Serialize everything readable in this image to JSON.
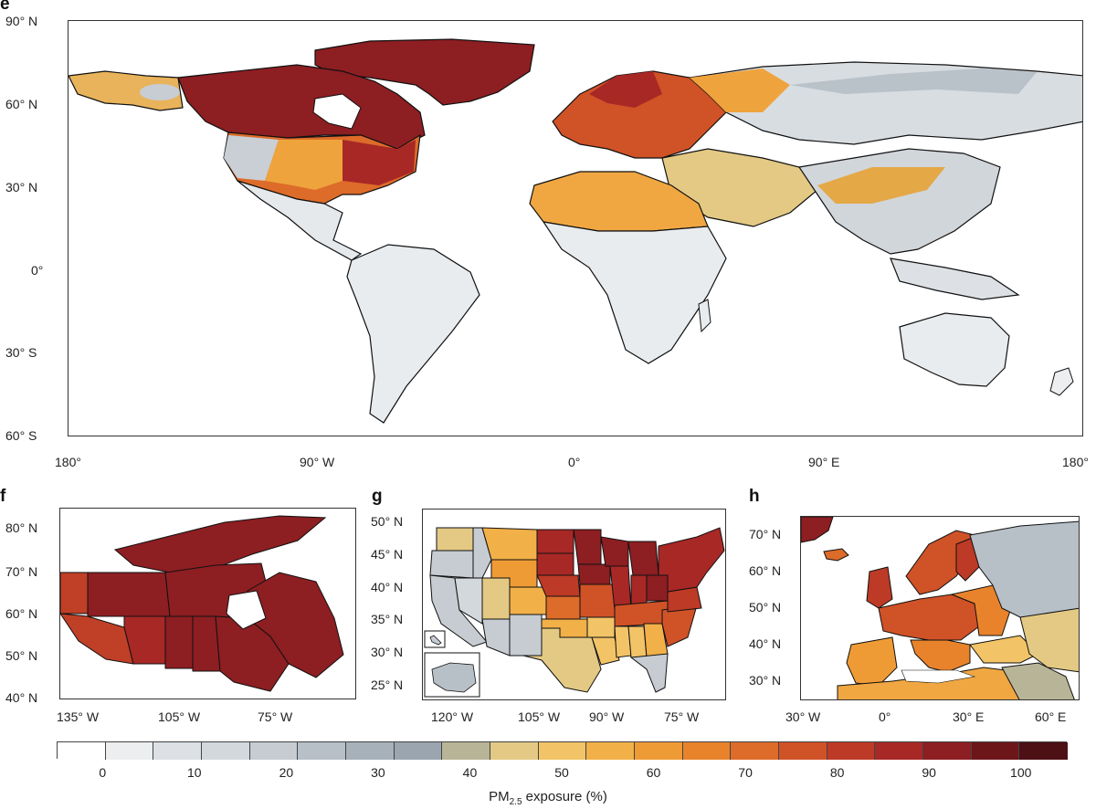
{
  "panels": {
    "e": {
      "letter": "e",
      "lat_labels": [
        "90° N",
        "60° N",
        "30° N",
        "0°",
        "30° S",
        "60° S"
      ],
      "lon_labels": [
        "180°",
        "90° W",
        "0°",
        "90° E",
        "180°"
      ]
    },
    "f": {
      "letter": "f",
      "lat_labels": [
        "80° N",
        "70° N",
        "60° N",
        "50° N",
        "40° N"
      ],
      "lon_labels": [
        "135° W",
        "105° W",
        "75° W"
      ]
    },
    "g": {
      "letter": "g",
      "lat_labels": [
        "50° N",
        "45° N",
        "40° N",
        "35° N",
        "30° N",
        "25° N"
      ],
      "lon_labels": [
        "120° W",
        "105° W",
        "90° W",
        "75° W"
      ]
    },
    "h": {
      "letter": "h",
      "lat_labels": [
        "70° N",
        "60° N",
        "50° N",
        "40° N",
        "30° N"
      ],
      "lon_labels": [
        "30° W",
        "0°",
        "30° E",
        "60° E"
      ]
    }
  },
  "colorbar": {
    "labels": [
      "0",
      "10",
      "20",
      "30",
      "40",
      "50",
      "60",
      "70",
      "80",
      "90",
      "100"
    ],
    "title_main": "PM",
    "title_sub": "2.5",
    "title_rest": " exposure (%)",
    "colors": [
      "#ffffff",
      "#eceef0",
      "#dde1e5",
      "#d3d8dd",
      "#c6ccd2",
      "#b7bfc7",
      "#a7b1ba",
      "#9aa5af",
      "#b8b497",
      "#e3c984",
      "#f2c467",
      "#f2b048",
      "#ef9b35",
      "#e8832c",
      "#dd6b29",
      "#d05227",
      "#bd3a26",
      "#a82826",
      "#8d1e22",
      "#6c161a",
      "#4d1015"
    ],
    "range": [
      -5,
      105
    ],
    "step": 5
  }
}
